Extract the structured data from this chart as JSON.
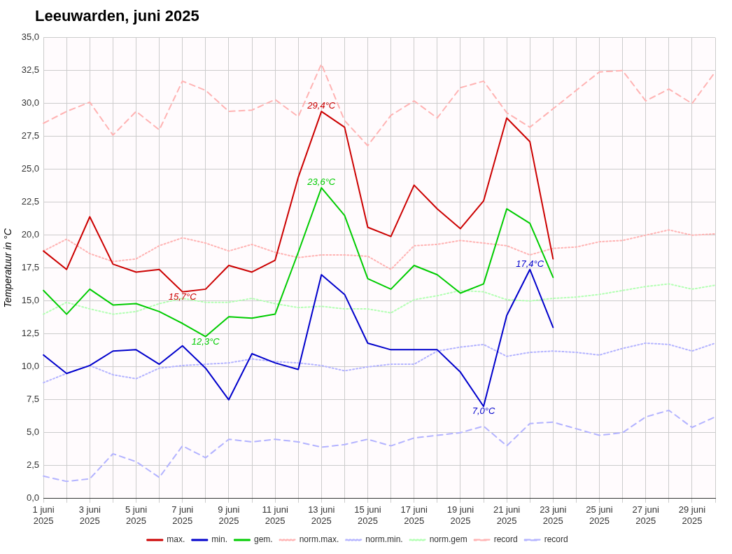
{
  "chart_data": {
    "type": "line",
    "title": "Leeuwarden, juni 2025",
    "ylabel": "Temperatuur in °C",
    "categories": [
      "1 juni 2025",
      null,
      "3 juni 2025",
      null,
      "5 juni 2025",
      null,
      "7 juni 2025",
      null,
      "9 juni 2025",
      null,
      "11 juni 2025",
      null,
      "13 juni 2025",
      null,
      "15 juni 2025",
      null,
      "17 juni 2025",
      null,
      "19 juni 2025",
      null,
      "21 juni 2025",
      null,
      "23 juni 2025",
      null,
      "25 juni 2025",
      null,
      "27 juni 2025",
      null,
      "29 juni 2025",
      null
    ],
    "series": [
      {
        "name": "max.",
        "color": "#cc0000",
        "line_style": "solid",
        "values": [
          18.8,
          17.4,
          21.4,
          17.8,
          17.2,
          17.4,
          15.7,
          15.9,
          17.7,
          17.2,
          18.1,
          24.4,
          29.4,
          28.2,
          20.6,
          19.9,
          23.8,
          22.0,
          20.5,
          22.6,
          28.9,
          27.1,
          18.2,
          null,
          null,
          null,
          null,
          null,
          null,
          null
        ]
      },
      {
        "name": "min.",
        "color": "#0000cc",
        "line_style": "solid",
        "values": [
          10.9,
          9.5,
          10.1,
          11.2,
          11.3,
          10.2,
          11.6,
          9.9,
          7.5,
          11.0,
          10.3,
          9.8,
          17.0,
          15.5,
          11.8,
          11.3,
          11.3,
          11.3,
          9.6,
          7.0,
          13.9,
          17.4,
          13.0,
          null,
          null,
          null,
          null,
          null,
          null,
          null
        ]
      },
      {
        "name": "gem.",
        "color": "#00cc00",
        "line_style": "solid",
        "values": [
          15.8,
          14.0,
          15.9,
          14.7,
          14.8,
          14.2,
          13.3,
          12.3,
          13.8,
          13.7,
          14.0,
          18.7,
          23.6,
          21.5,
          16.7,
          15.9,
          17.7,
          17.0,
          15.6,
          16.3,
          22.0,
          20.9,
          16.8,
          null,
          null,
          null,
          null,
          null,
          null,
          null
        ]
      },
      {
        "name": "norm.max.",
        "color": "#ffb3b3",
        "line_style": "dotted",
        "values": [
          18.8,
          19.7,
          18.6,
          18.0,
          18.2,
          19.2,
          19.8,
          19.4,
          18.8,
          19.3,
          18.7,
          18.3,
          18.5,
          18.5,
          18.4,
          17.4,
          19.2,
          19.3,
          19.6,
          19.4,
          19.2,
          18.5,
          19.0,
          19.1,
          19.5,
          19.6,
          20.0,
          20.4,
          20.0,
          20.1
        ]
      },
      {
        "name": "norm.min.",
        "color": "#b3b3ff",
        "line_style": "dotted",
        "values": [
          8.8,
          9.5,
          10.1,
          9.4,
          9.1,
          9.9,
          10.1,
          10.2,
          10.3,
          10.6,
          10.4,
          10.3,
          10.1,
          9.7,
          10.0,
          10.2,
          10.2,
          11.2,
          11.5,
          11.7,
          10.8,
          11.1,
          11.2,
          11.1,
          10.9,
          11.4,
          11.8,
          11.7,
          11.2,
          11.8
        ]
      },
      {
        "name": "norm.gem",
        "color": "#b3ffb3",
        "line_style": "dotted",
        "values": [
          14.0,
          14.9,
          14.4,
          14.0,
          14.2,
          14.8,
          15.2,
          14.9,
          14.9,
          15.2,
          14.8,
          14.5,
          14.6,
          14.4,
          14.4,
          14.1,
          15.1,
          15.4,
          15.8,
          15.7,
          15.1,
          15.0,
          15.2,
          15.3,
          15.5,
          15.8,
          16.1,
          16.3,
          15.9,
          16.2
        ]
      },
      {
        "name": "record",
        "color": "#ffb3b3",
        "line_style": "dashed",
        "values": [
          28.5,
          29.4,
          30.1,
          27.6,
          29.4,
          28.0,
          31.7,
          31.0,
          29.4,
          29.5,
          30.3,
          29.0,
          33.0,
          28.7,
          26.8,
          29.1,
          30.2,
          28.9,
          31.2,
          31.7,
          29.3,
          28.2,
          29.6,
          31.0,
          32.4,
          32.5,
          30.2,
          31.1,
          30.0,
          32.4
        ]
      },
      {
        "name": "record",
        "color": "#b3b3ff",
        "line_style": "dashed",
        "values": [
          1.7,
          1.3,
          1.5,
          3.4,
          2.8,
          1.6,
          4.0,
          3.1,
          4.5,
          4.3,
          4.5,
          4.3,
          3.9,
          4.1,
          4.5,
          4.0,
          4.6,
          4.8,
          5.0,
          5.5,
          4.0,
          5.7,
          5.8,
          5.3,
          4.8,
          5.0,
          6.2,
          6.7,
          5.4,
          6.2
        ]
      }
    ],
    "ylim": [
      0,
      35
    ],
    "yticks": [
      {
        "value": 0,
        "label": "0,0"
      },
      {
        "value": 2.5,
        "label": "2,5"
      },
      {
        "value": 5,
        "label": "5,0"
      },
      {
        "value": 7.5,
        "label": "7,5"
      },
      {
        "value": 10,
        "label": "10,0"
      },
      {
        "value": 12.5,
        "label": "12,5"
      },
      {
        "value": 15,
        "label": "15,0"
      },
      {
        "value": 17.5,
        "label": "17,5"
      },
      {
        "value": 20,
        "label": "20,0"
      },
      {
        "value": 22.5,
        "label": "22,5"
      },
      {
        "value": 25,
        "label": "25,0"
      },
      {
        "value": 27.5,
        "label": "27,5"
      },
      {
        "value": 30,
        "label": "30,0"
      },
      {
        "value": 32.5,
        "label": "32,5"
      },
      {
        "value": 35,
        "label": "35,0"
      }
    ],
    "annotations": [
      {
        "text": "29,4°C",
        "x": "13 juni 2025",
        "y": 29.4
      },
      {
        "text": "23,6°C",
        "x": "13 juni 2025",
        "y": 23.6
      },
      {
        "text": "15,7°C",
        "x": "7 juni 2025",
        "y": 15.7
      },
      {
        "text": "12,3°C",
        "y": 12.3
      },
      {
        "text": "17,4°C",
        "y": 17.4
      },
      {
        "text": "7,0°C",
        "y": 7.0
      }
    ],
    "grid": true,
    "legend": "bottom",
    "marker": "none"
  }
}
